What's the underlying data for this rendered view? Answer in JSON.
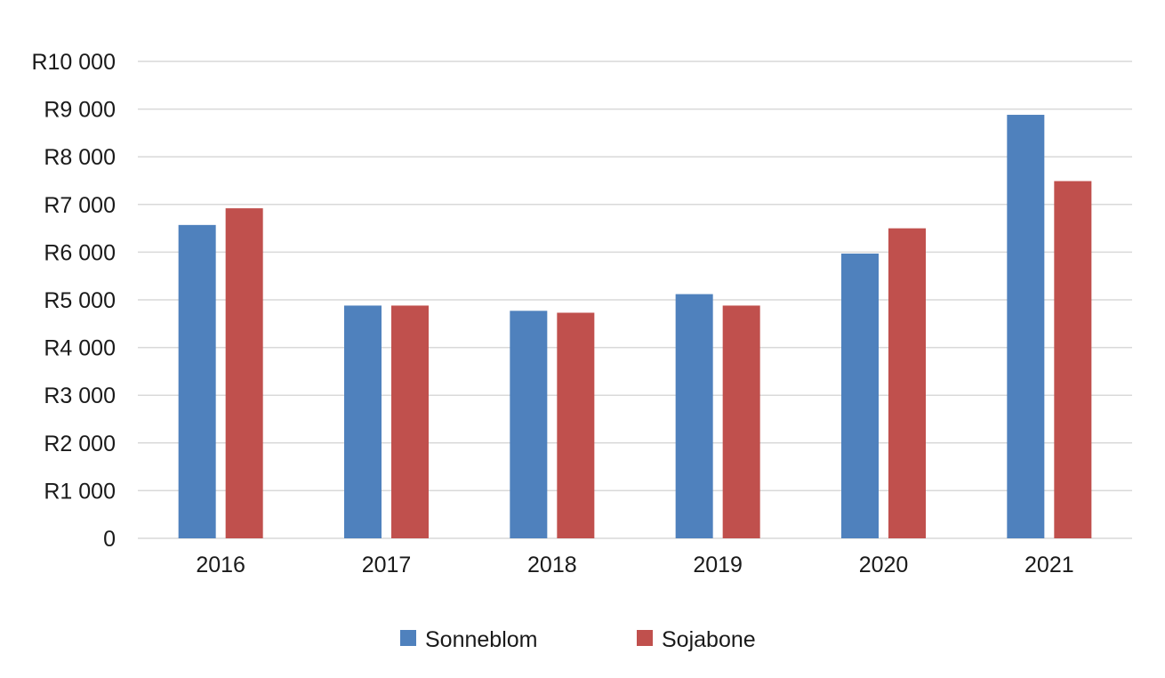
{
  "chart_data": {
    "type": "bar",
    "title": "",
    "xlabel": "",
    "ylabel": "",
    "categories": [
      "2016",
      "2017",
      "2018",
      "2019",
      "2020",
      "2021"
    ],
    "series": [
      {
        "name": "Sonneblom",
        "color": "#4f81bd",
        "values": [
          6570,
          4880,
          4770,
          5120,
          5970,
          8880
        ]
      },
      {
        "name": "Sojabone",
        "color": "#c0504d",
        "values": [
          6920,
          4880,
          4730,
          4880,
          6500,
          7490
        ]
      }
    ],
    "ylim": [
      0,
      10000
    ],
    "yticks": [
      0,
      1000,
      2000,
      3000,
      4000,
      5000,
      6000,
      7000,
      8000,
      9000,
      10000
    ],
    "ytick_labels": [
      "0",
      "R1 000",
      "R2 000",
      "R3 000",
      "R4 000",
      "R5 000",
      "R6 000",
      "R7 000",
      "R8 000",
      "R9 000",
      "R10 000"
    ],
    "grid": true,
    "legend_position": "bottom"
  }
}
